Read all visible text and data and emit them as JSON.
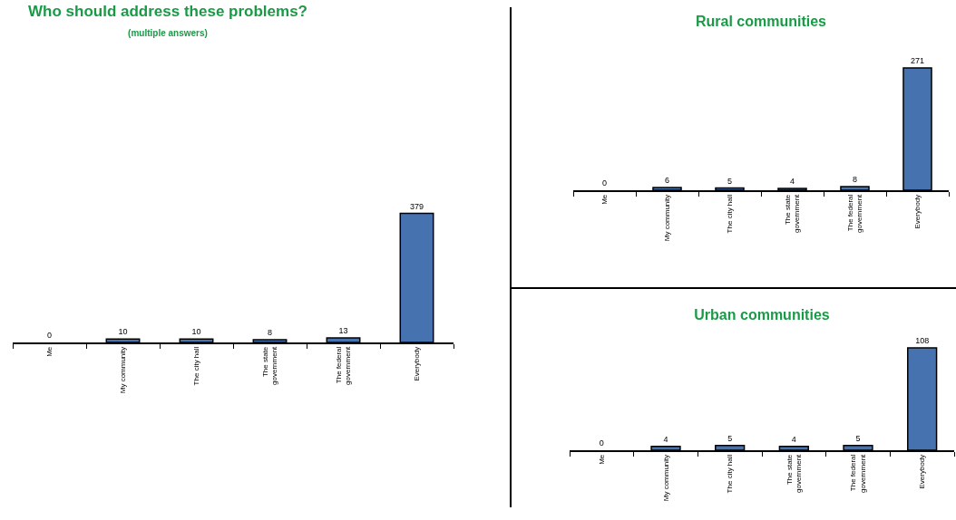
{
  "chart_data": [
    {
      "type": "bar",
      "title": "Who should address these problems?",
      "subtitle": "(multiple answers)",
      "categories": [
        "Me",
        "My community",
        "The city hall",
        "The state government",
        "The federal government",
        "Everybody"
      ],
      "values": [
        0,
        10,
        10,
        8,
        13,
        379
      ],
      "color": "#4672b0",
      "data_labels": true
    },
    {
      "type": "bar",
      "title": "Rural communities",
      "categories": [
        "Me",
        "My community",
        "The city hall",
        "The state government",
        "The federal government",
        "Everybody"
      ],
      "values": [
        0,
        6,
        5,
        4,
        8,
        271
      ],
      "color": "#4672b0",
      "data_labels": true
    },
    {
      "type": "bar",
      "title": "Urban communities",
      "categories": [
        "Me",
        "My community",
        "The city hall",
        "The state government",
        "The federal government",
        "Everybody"
      ],
      "values": [
        0,
        4,
        5,
        4,
        5,
        108
      ],
      "color": "#4672b0",
      "data_labels": true
    }
  ]
}
